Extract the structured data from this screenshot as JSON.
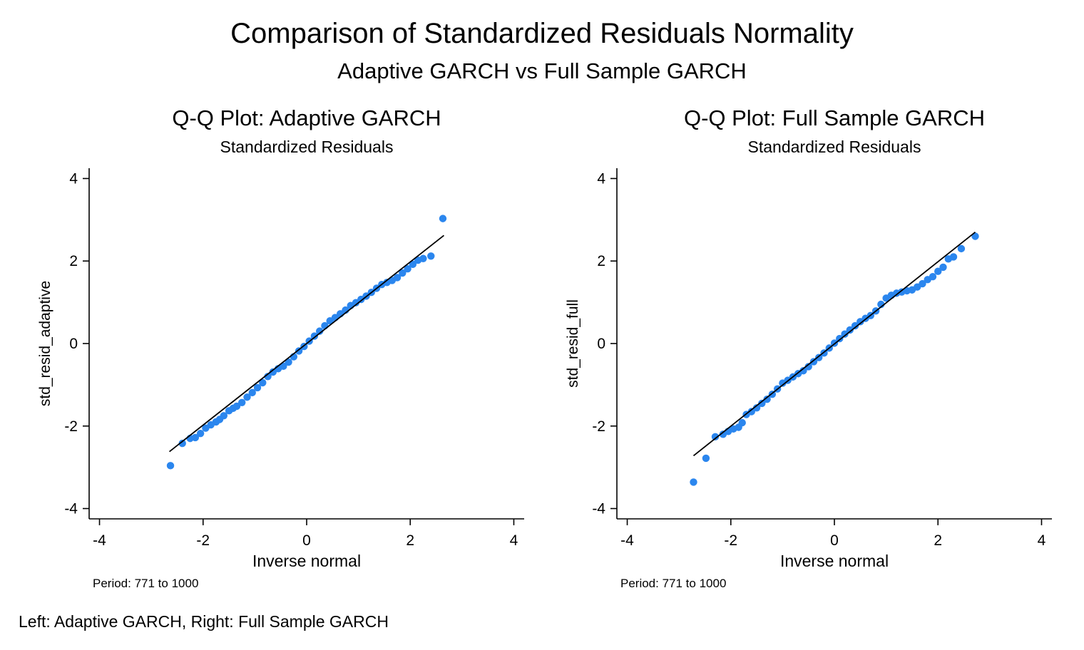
{
  "title": "Comparison of Standardized Residuals Normality",
  "subtitle": "Adaptive GARCH vs Full Sample GARCH",
  "footnote": "Left: Adaptive GARCH, Right: Full Sample GARCH",
  "colors": {
    "points": "#2b86ee",
    "fit_line": "#000000",
    "axis": "#000000",
    "background": "#ffffff"
  },
  "chart_data": [
    {
      "type": "scatter",
      "title": "Q-Q Plot: Adaptive GARCH",
      "subtitle": "Standardized Residuals",
      "xlabel": "Inverse normal",
      "ylabel": "std_resid_adaptive",
      "note": "Period: 771 to 1000",
      "xlim": [
        -4.2,
        4.2
      ],
      "ylim": [
        -4.25,
        4.25
      ],
      "xticks": [
        -4,
        -2,
        0,
        2,
        4
      ],
      "yticks": [
        -4,
        -2,
        0,
        2,
        4
      ],
      "grid": false,
      "reference_line": {
        "x": [
          -2.65,
          2.65
        ],
        "y": [
          -2.62,
          2.62
        ]
      },
      "points": [
        [
          -2.63,
          -2.96
        ],
        [
          -2.4,
          -2.42
        ],
        [
          -2.25,
          -2.3
        ],
        [
          -2.15,
          -2.28
        ],
        [
          -2.05,
          -2.18
        ],
        [
          -1.95,
          -2.05
        ],
        [
          -1.85,
          -1.97
        ],
        [
          -1.75,
          -1.9
        ],
        [
          -1.68,
          -1.84
        ],
        [
          -1.6,
          -1.75
        ],
        [
          -1.5,
          -1.63
        ],
        [
          -1.42,
          -1.57
        ],
        [
          -1.35,
          -1.52
        ],
        [
          -1.25,
          -1.43
        ],
        [
          -1.15,
          -1.3
        ],
        [
          -1.05,
          -1.19
        ],
        [
          -0.95,
          -1.07
        ],
        [
          -0.85,
          -0.95
        ],
        [
          -0.75,
          -0.8
        ],
        [
          -0.65,
          -0.69
        ],
        [
          -0.55,
          -0.61
        ],
        [
          -0.45,
          -0.55
        ],
        [
          -0.35,
          -0.45
        ],
        [
          -0.25,
          -0.32
        ],
        [
          -0.15,
          -0.18
        ],
        [
          -0.05,
          -0.07
        ],
        [
          0.05,
          0.06
        ],
        [
          0.15,
          0.18
        ],
        [
          0.25,
          0.3
        ],
        [
          0.35,
          0.43
        ],
        [
          0.45,
          0.55
        ],
        [
          0.55,
          0.63
        ],
        [
          0.65,
          0.72
        ],
        [
          0.75,
          0.81
        ],
        [
          0.85,
          0.92
        ],
        [
          0.95,
          0.99
        ],
        [
          1.05,
          1.07
        ],
        [
          1.15,
          1.15
        ],
        [
          1.25,
          1.24
        ],
        [
          1.35,
          1.34
        ],
        [
          1.45,
          1.43
        ],
        [
          1.55,
          1.48
        ],
        [
          1.65,
          1.53
        ],
        [
          1.75,
          1.6
        ],
        [
          1.85,
          1.71
        ],
        [
          1.95,
          1.81
        ],
        [
          2.05,
          1.92
        ],
        [
          2.15,
          2.02
        ],
        [
          2.25,
          2.06
        ],
        [
          2.4,
          2.12
        ],
        [
          2.63,
          3.03
        ]
      ]
    },
    {
      "type": "scatter",
      "title": "Q-Q Plot: Full Sample GARCH",
      "subtitle": "Standardized Residuals",
      "xlabel": "Inverse normal",
      "ylabel": "std_resid_full",
      "note": "Period: 771 to 1000",
      "xlim": [
        -4.2,
        4.2
      ],
      "ylim": [
        -4.25,
        4.25
      ],
      "xticks": [
        -4,
        -2,
        0,
        2,
        4
      ],
      "yticks": [
        -4,
        -2,
        0,
        2,
        4
      ],
      "grid": false,
      "reference_line": {
        "x": [
          -2.72,
          2.72
        ],
        "y": [
          -2.72,
          2.7
        ]
      },
      "points": [
        [
          -2.72,
          -3.36
        ],
        [
          -2.48,
          -2.78
        ],
        [
          -2.3,
          -2.26
        ],
        [
          -2.15,
          -2.2
        ],
        [
          -2.05,
          -2.13
        ],
        [
          -1.95,
          -2.07
        ],
        [
          -1.85,
          -2.03
        ],
        [
          -1.78,
          -1.92
        ],
        [
          -1.7,
          -1.72
        ],
        [
          -1.6,
          -1.65
        ],
        [
          -1.5,
          -1.56
        ],
        [
          -1.4,
          -1.45
        ],
        [
          -1.3,
          -1.35
        ],
        [
          -1.2,
          -1.23
        ],
        [
          -1.1,
          -1.1
        ],
        [
          -1.0,
          -0.96
        ],
        [
          -0.9,
          -0.89
        ],
        [
          -0.8,
          -0.81
        ],
        [
          -0.7,
          -0.73
        ],
        [
          -0.6,
          -0.66
        ],
        [
          -0.5,
          -0.56
        ],
        [
          -0.4,
          -0.44
        ],
        [
          -0.3,
          -0.34
        ],
        [
          -0.2,
          -0.23
        ],
        [
          -0.1,
          -0.11
        ],
        [
          0.0,
          0.01
        ],
        [
          0.1,
          0.12
        ],
        [
          0.2,
          0.23
        ],
        [
          0.3,
          0.33
        ],
        [
          0.4,
          0.43
        ],
        [
          0.5,
          0.53
        ],
        [
          0.6,
          0.61
        ],
        [
          0.7,
          0.68
        ],
        [
          0.8,
          0.79
        ],
        [
          0.9,
          0.95
        ],
        [
          1.0,
          1.1
        ],
        [
          1.1,
          1.17
        ],
        [
          1.2,
          1.22
        ],
        [
          1.3,
          1.25
        ],
        [
          1.4,
          1.28
        ],
        [
          1.5,
          1.3
        ],
        [
          1.6,
          1.37
        ],
        [
          1.7,
          1.45
        ],
        [
          1.8,
          1.55
        ],
        [
          1.9,
          1.62
        ],
        [
          2.0,
          1.75
        ],
        [
          2.1,
          1.85
        ],
        [
          2.2,
          2.05
        ],
        [
          2.3,
          2.1
        ],
        [
          2.45,
          2.3
        ],
        [
          2.72,
          2.6
        ]
      ]
    }
  ]
}
